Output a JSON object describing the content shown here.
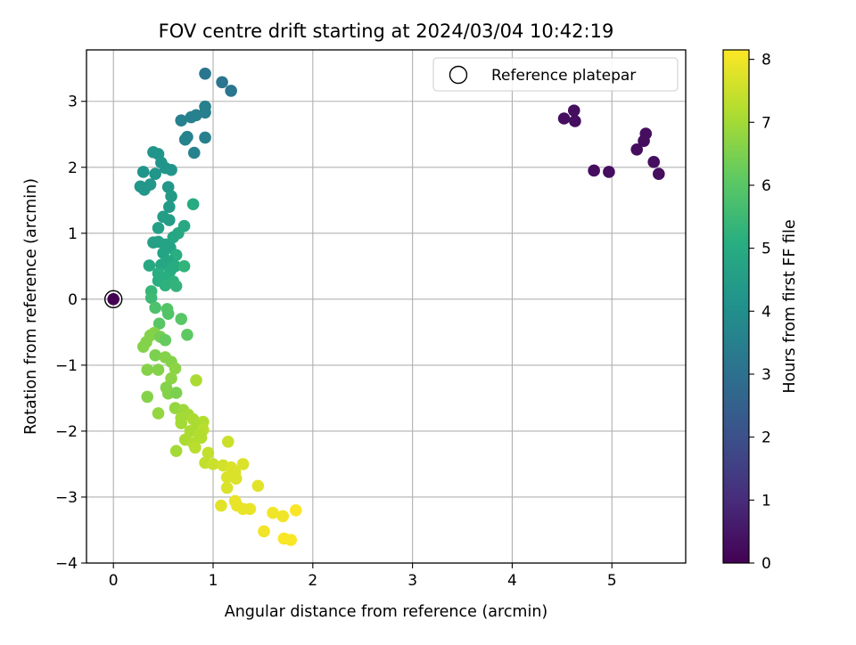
{
  "chart_data": {
    "type": "scatter",
    "title": "FOV centre drift starting at 2024/03/04 10:42:19",
    "xlabel": "Angular distance from reference (arcmin)",
    "ylabel": "Rotation from reference (arcmin)",
    "xlim": [
      -0.27,
      5.74
    ],
    "ylim": [
      -4.0,
      3.78
    ],
    "xticks": [
      0,
      1,
      2,
      3,
      4,
      5
    ],
    "yticks": [
      -4,
      -3,
      -2,
      -1,
      0,
      1,
      2,
      3
    ],
    "grid": true,
    "legend": {
      "position": "top-right",
      "entries": [
        "Reference platepar"
      ]
    },
    "reference": {
      "x": 0,
      "y": 0,
      "hours": 0
    },
    "colorbar": {
      "label": "Hours from first FF file",
      "min": 0,
      "max": 8.15,
      "ticks": [
        0,
        1,
        2,
        3,
        4,
        5,
        6,
        7,
        8
      ],
      "colormap": "viridis"
    },
    "points": [
      {
        "x": 4.52,
        "y": 2.74,
        "h": 0.3
      },
      {
        "x": 4.62,
        "y": 2.86,
        "h": 0.3
      },
      {
        "x": 4.63,
        "y": 2.7,
        "h": 0.3
      },
      {
        "x": 4.82,
        "y": 1.95,
        "h": 0.3
      },
      {
        "x": 4.97,
        "y": 1.93,
        "h": 0.3
      },
      {
        "x": 5.25,
        "y": 2.27,
        "h": 0.3
      },
      {
        "x": 5.32,
        "y": 2.4,
        "h": 0.3
      },
      {
        "x": 5.34,
        "y": 2.51,
        "h": 0.3
      },
      {
        "x": 5.42,
        "y": 2.08,
        "h": 0.3
      },
      {
        "x": 5.47,
        "y": 1.9,
        "h": 0.3
      },
      {
        "x": 0.92,
        "y": 3.42,
        "h": 3.2
      },
      {
        "x": 1.09,
        "y": 3.29,
        "h": 3.2
      },
      {
        "x": 1.18,
        "y": 3.16,
        "h": 3.2
      },
      {
        "x": 0.92,
        "y": 2.92,
        "h": 3.5
      },
      {
        "x": 0.92,
        "y": 2.83,
        "h": 3.5
      },
      {
        "x": 0.83,
        "y": 2.79,
        "h": 3.5
      },
      {
        "x": 0.78,
        "y": 2.76,
        "h": 3.5
      },
      {
        "x": 0.68,
        "y": 2.71,
        "h": 3.5
      },
      {
        "x": 0.92,
        "y": 2.45,
        "h": 3.5
      },
      {
        "x": 0.74,
        "y": 2.46,
        "h": 3.6
      },
      {
        "x": 0.72,
        "y": 2.42,
        "h": 3.6
      },
      {
        "x": 0.81,
        "y": 2.22,
        "h": 3.6
      },
      {
        "x": 0.4,
        "y": 2.23,
        "h": 4.2
      },
      {
        "x": 0.45,
        "y": 2.2,
        "h": 4.2
      },
      {
        "x": 0.48,
        "y": 2.07,
        "h": 4.2
      },
      {
        "x": 0.52,
        "y": 1.99,
        "h": 4.2
      },
      {
        "x": 0.58,
        "y": 1.96,
        "h": 4.2
      },
      {
        "x": 0.42,
        "y": 1.9,
        "h": 4.2
      },
      {
        "x": 0.3,
        "y": 1.93,
        "h": 4.2
      },
      {
        "x": 0.27,
        "y": 1.71,
        "h": 4.3
      },
      {
        "x": 0.31,
        "y": 1.66,
        "h": 4.3
      },
      {
        "x": 0.37,
        "y": 1.74,
        "h": 4.3
      },
      {
        "x": 0.55,
        "y": 1.7,
        "h": 4.3
      },
      {
        "x": 0.58,
        "y": 1.56,
        "h": 4.4
      },
      {
        "x": 0.56,
        "y": 1.4,
        "h": 4.4
      },
      {
        "x": 0.5,
        "y": 1.25,
        "h": 4.5
      },
      {
        "x": 0.56,
        "y": 1.2,
        "h": 4.5
      },
      {
        "x": 0.45,
        "y": 1.08,
        "h": 4.6
      },
      {
        "x": 0.71,
        "y": 1.11,
        "h": 4.9
      },
      {
        "x": 0.8,
        "y": 1.44,
        "h": 5.0
      },
      {
        "x": 0.65,
        "y": 1.0,
        "h": 4.9
      },
      {
        "x": 0.6,
        "y": 0.94,
        "h": 4.8
      },
      {
        "x": 0.4,
        "y": 0.86,
        "h": 4.6
      },
      {
        "x": 0.45,
        "y": 0.87,
        "h": 4.6
      },
      {
        "x": 0.52,
        "y": 0.83,
        "h": 4.7
      },
      {
        "x": 0.57,
        "y": 0.78,
        "h": 4.7
      },
      {
        "x": 0.5,
        "y": 0.7,
        "h": 4.7
      },
      {
        "x": 0.63,
        "y": 0.67,
        "h": 5.1
      },
      {
        "x": 0.55,
        "y": 0.58,
        "h": 4.8
      },
      {
        "x": 0.48,
        "y": 0.52,
        "h": 4.8
      },
      {
        "x": 0.36,
        "y": 0.51,
        "h": 4.9
      },
      {
        "x": 0.62,
        "y": 0.5,
        "h": 5.0
      },
      {
        "x": 0.71,
        "y": 0.5,
        "h": 5.3
      },
      {
        "x": 0.57,
        "y": 0.43,
        "h": 5.0
      },
      {
        "x": 0.45,
        "y": 0.39,
        "h": 5.1
      },
      {
        "x": 0.52,
        "y": 0.32,
        "h": 5.1
      },
      {
        "x": 0.6,
        "y": 0.27,
        "h": 5.2
      },
      {
        "x": 0.45,
        "y": 0.28,
        "h": 5.1
      },
      {
        "x": 0.52,
        "y": 0.21,
        "h": 5.2
      },
      {
        "x": 0.63,
        "y": 0.2,
        "h": 5.3
      },
      {
        "x": 0.38,
        "y": 0.12,
        "h": 5.4
      },
      {
        "x": 0.38,
        "y": 0.02,
        "h": 5.5
      },
      {
        "x": 0.42,
        "y": -0.13,
        "h": 5.8
      },
      {
        "x": 0.54,
        "y": -0.15,
        "h": 5.9
      },
      {
        "x": 0.55,
        "y": -0.22,
        "h": 5.9
      },
      {
        "x": 0.68,
        "y": -0.3,
        "h": 6.0
      },
      {
        "x": 0.46,
        "y": -0.37,
        "h": 6.0
      },
      {
        "x": 0.74,
        "y": -0.54,
        "h": 6.1
      },
      {
        "x": 0.41,
        "y": -0.51,
        "h": 6.6
      },
      {
        "x": 0.37,
        "y": -0.55,
        "h": 6.6
      },
      {
        "x": 0.47,
        "y": -0.57,
        "h": 6.4
      },
      {
        "x": 0.52,
        "y": -0.62,
        "h": 6.2
      },
      {
        "x": 0.33,
        "y": -0.65,
        "h": 6.6
      },
      {
        "x": 0.3,
        "y": -0.72,
        "h": 6.6
      },
      {
        "x": 0.42,
        "y": -0.85,
        "h": 6.5
      },
      {
        "x": 0.52,
        "y": -0.88,
        "h": 6.6
      },
      {
        "x": 0.58,
        "y": -0.95,
        "h": 6.6
      },
      {
        "x": 0.62,
        "y": -1.05,
        "h": 6.7
      },
      {
        "x": 0.45,
        "y": -1.07,
        "h": 6.6
      },
      {
        "x": 0.34,
        "y": -1.07,
        "h": 6.6
      },
      {
        "x": 0.58,
        "y": -1.2,
        "h": 6.7
      },
      {
        "x": 0.83,
        "y": -1.23,
        "h": 7.1
      },
      {
        "x": 0.53,
        "y": -1.34,
        "h": 6.6
      },
      {
        "x": 0.55,
        "y": -1.43,
        "h": 6.6
      },
      {
        "x": 0.63,
        "y": -1.42,
        "h": 6.5
      },
      {
        "x": 0.34,
        "y": -1.48,
        "h": 6.6
      },
      {
        "x": 0.62,
        "y": -1.65,
        "h": 6.8
      },
      {
        "x": 0.7,
        "y": -1.68,
        "h": 6.9
      },
      {
        "x": 0.45,
        "y": -1.73,
        "h": 6.8
      },
      {
        "x": 0.75,
        "y": -1.75,
        "h": 7.0
      },
      {
        "x": 0.68,
        "y": -1.8,
        "h": 7.0
      },
      {
        "x": 0.8,
        "y": -1.82,
        "h": 7.1
      },
      {
        "x": 0.68,
        "y": -1.88,
        "h": 7.0
      },
      {
        "x": 0.9,
        "y": -1.86,
        "h": 7.2
      },
      {
        "x": 0.84,
        "y": -1.93,
        "h": 7.1
      },
      {
        "x": 0.77,
        "y": -2.0,
        "h": 7.1
      },
      {
        "x": 0.9,
        "y": -1.98,
        "h": 7.3
      },
      {
        "x": 0.86,
        "y": -2.05,
        "h": 7.2
      },
      {
        "x": 0.72,
        "y": -2.13,
        "h": 7.1
      },
      {
        "x": 0.8,
        "y": -2.18,
        "h": 7.2
      },
      {
        "x": 0.88,
        "y": -2.1,
        "h": 7.2
      },
      {
        "x": 0.82,
        "y": -2.25,
        "h": 7.3
      },
      {
        "x": 0.63,
        "y": -2.3,
        "h": 7.0
      },
      {
        "x": 1.15,
        "y": -2.16,
        "h": 7.5
      },
      {
        "x": 0.95,
        "y": -2.33,
        "h": 7.4
      },
      {
        "x": 0.92,
        "y": -2.48,
        "h": 7.4
      },
      {
        "x": 1.0,
        "y": -2.5,
        "h": 7.5
      },
      {
        "x": 1.1,
        "y": -2.52,
        "h": 7.6
      },
      {
        "x": 1.18,
        "y": -2.55,
        "h": 7.7
      },
      {
        "x": 1.3,
        "y": -2.5,
        "h": 7.7
      },
      {
        "x": 1.22,
        "y": -2.62,
        "h": 7.7
      },
      {
        "x": 1.14,
        "y": -2.7,
        "h": 7.7
      },
      {
        "x": 1.23,
        "y": -2.72,
        "h": 7.7
      },
      {
        "x": 1.14,
        "y": -2.86,
        "h": 7.7
      },
      {
        "x": 1.45,
        "y": -2.83,
        "h": 7.8
      },
      {
        "x": 1.22,
        "y": -3.06,
        "h": 7.9
      },
      {
        "x": 1.24,
        "y": -3.13,
        "h": 7.9
      },
      {
        "x": 1.08,
        "y": -3.13,
        "h": 7.8
      },
      {
        "x": 1.3,
        "y": -3.18,
        "h": 7.9
      },
      {
        "x": 1.37,
        "y": -3.18,
        "h": 7.9
      },
      {
        "x": 1.6,
        "y": -3.24,
        "h": 8.0
      },
      {
        "x": 1.7,
        "y": -3.29,
        "h": 8.0
      },
      {
        "x": 1.83,
        "y": -3.2,
        "h": 8.1
      },
      {
        "x": 1.51,
        "y": -3.52,
        "h": 8.0
      },
      {
        "x": 1.71,
        "y": -3.63,
        "h": 8.1
      },
      {
        "x": 1.78,
        "y": -3.65,
        "h": 8.1
      }
    ]
  }
}
